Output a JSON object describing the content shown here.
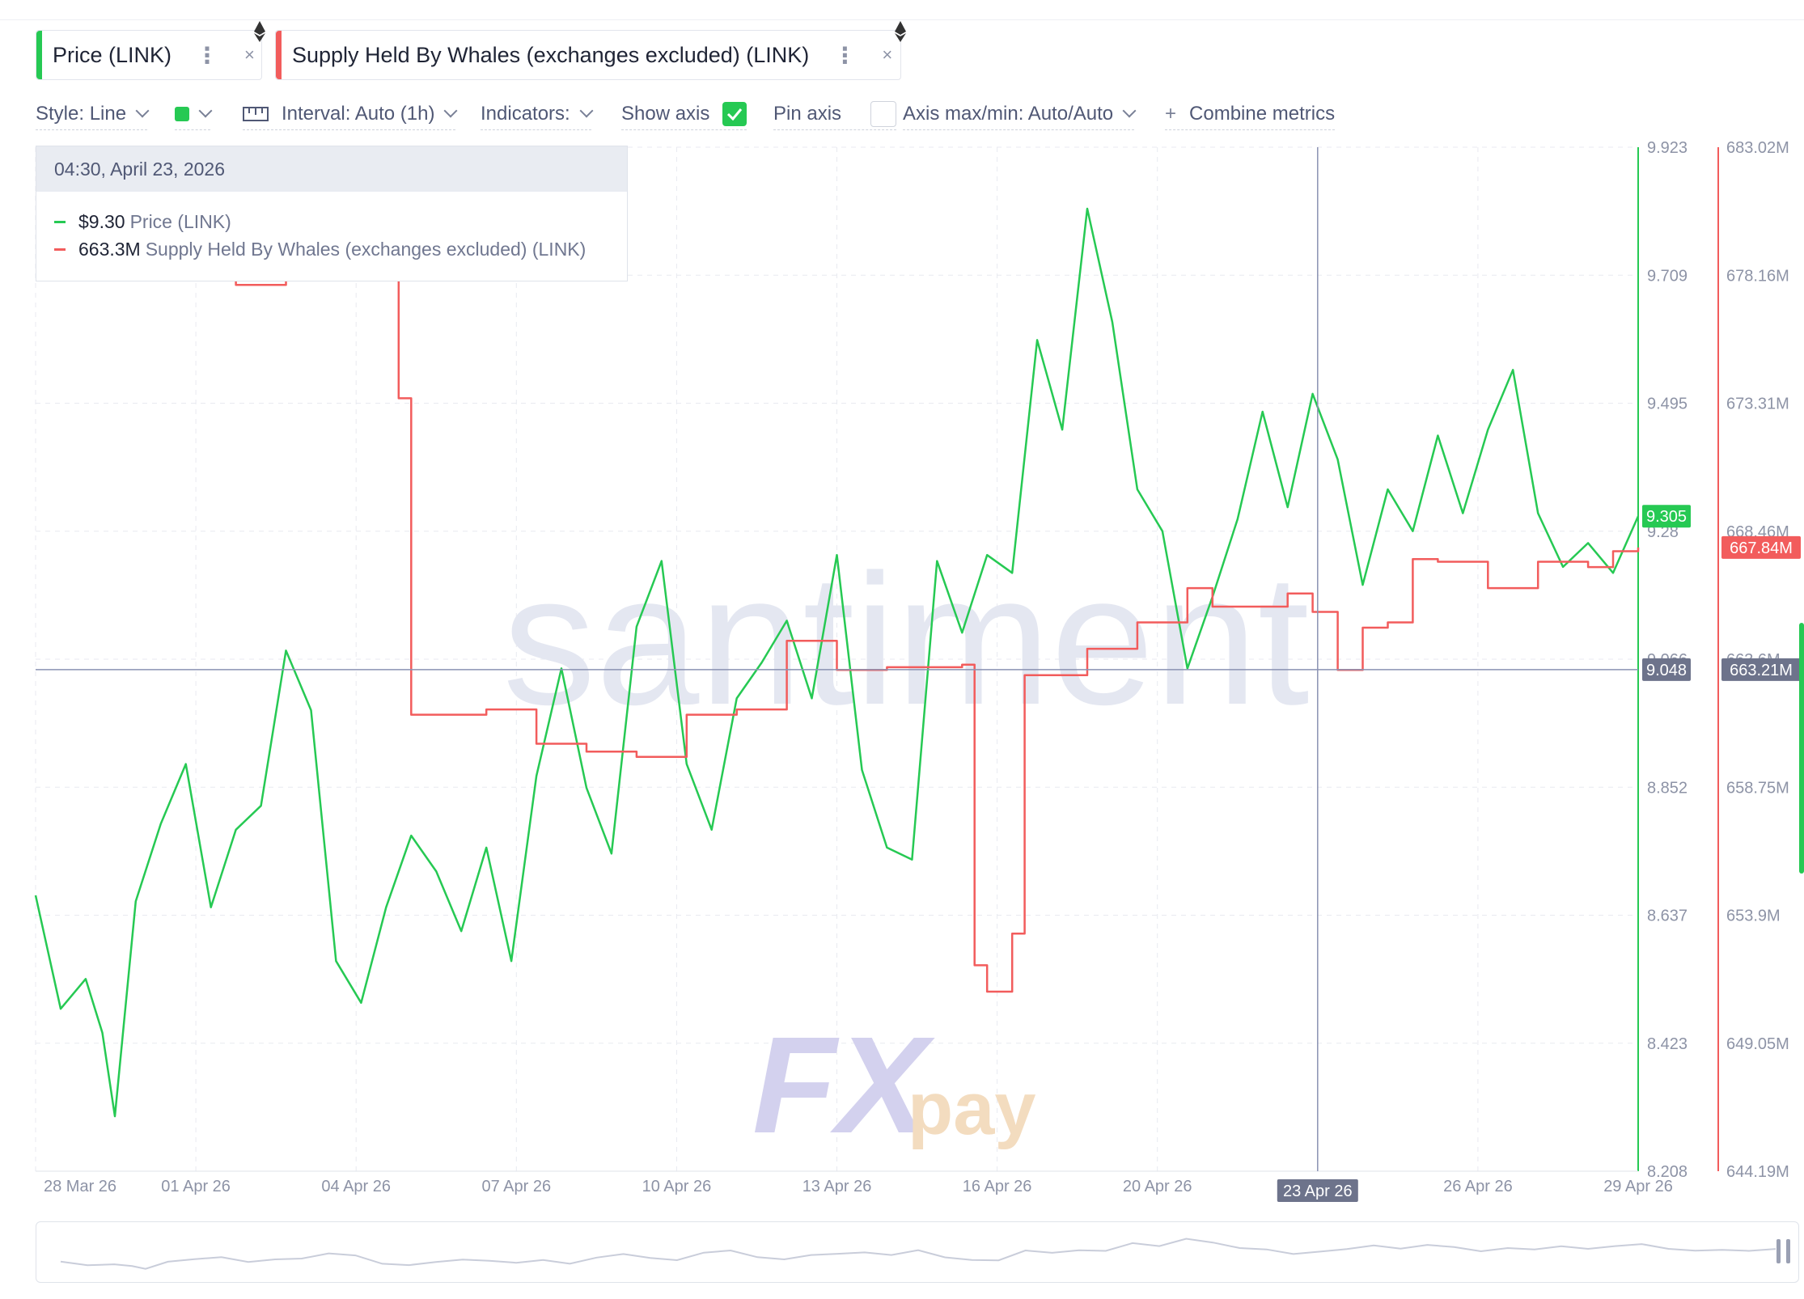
{
  "metric_tabs": [
    {
      "label": "Price (LINK)",
      "color": "#26c953",
      "menu_icon": "vertical-dots-icon",
      "close_icon": "close-icon",
      "close_label": "×"
    },
    {
      "label": "Supply Held By Whales (exchanges excluded) (LINK)",
      "color": "#f25c5c",
      "menu_icon": "vertical-dots-icon",
      "close_icon": "close-icon",
      "close_label": "×",
      "asset_icon": "ethereum-icon"
    }
  ],
  "toolbar": {
    "style": "Style: Line",
    "interval": "Interval: Auto (1h)",
    "indicators": "Indicators:",
    "show_axis": "Show axis",
    "show_axis_checked": true,
    "pin_axis": "Pin axis",
    "pin_axis_checked": false,
    "axis_maxmin": "Axis max/min: Auto/Auto",
    "combine": "Combine metrics",
    "plus": "+",
    "color_swatch": "#26c953"
  },
  "tooltip": {
    "date": "04:30, April 23, 2026",
    "rows": [
      {
        "value": "$9.30",
        "name": "Price (LINK)",
        "color": "#26c953"
      },
      {
        "value": "663.3M",
        "name": "Supply Held By Whales (exchanges excluded) (LINK)",
        "color": "#f25c5c"
      }
    ]
  },
  "watermarks": {
    "brand": "santiment",
    "logo_main": "FX",
    "logo_sub": "pay"
  },
  "chart_data": {
    "type": "line",
    "x_range": [
      "2026-03-28",
      "2026-04-29"
    ],
    "x_tick_labels": [
      "28 Mar 26",
      "01 Apr 26",
      "04 Apr 26",
      "07 Apr 26",
      "10 Apr 26",
      "13 Apr 26",
      "16 Apr 26",
      "20 Apr 26",
      "23 Apr 26",
      "26 Apr 26",
      "29 Apr 26"
    ],
    "y_left_ticks": [
      "9.923",
      "9.709",
      "9.495",
      "9.28",
      "9.066",
      "8.852",
      "8.637",
      "8.423",
      "8.208"
    ],
    "y_right_ticks": [
      "683.02M",
      "678.16M",
      "673.31M",
      "668.46M",
      "663.6M",
      "658.75M",
      "653.9M",
      "649.05M",
      "644.19M"
    ],
    "ylim_price": [
      8.208,
      9.923
    ],
    "ylim_supply": [
      644.19,
      683.02
    ],
    "crosshair": {
      "x_label": "23 Apr 26",
      "price_label": "9.048",
      "supply_label": "663.21M"
    },
    "last_value_labels": {
      "price": "9.305",
      "supply": "667.84M"
    },
    "grid": true,
    "series": [
      {
        "name": "Price (LINK)",
        "color": "#26c953",
        "axis": "left",
        "points": [
          [
            "2026-03-28",
            8.67
          ],
          [
            "2026-03-28T12",
            8.48
          ],
          [
            "2026-03-29",
            8.53
          ],
          [
            "2026-03-29T08",
            8.44
          ],
          [
            "2026-03-29T14",
            8.3
          ],
          [
            "2026-03-30",
            8.66
          ],
          [
            "2026-03-30T12",
            8.79
          ],
          [
            "2026-03-31",
            8.89
          ],
          [
            "2026-03-31T12",
            8.65
          ],
          [
            "2026-04-01",
            8.78
          ],
          [
            "2026-04-01T12",
            8.82
          ],
          [
            "2026-04-02",
            9.08
          ],
          [
            "2026-04-02T12",
            8.98
          ],
          [
            "2026-04-03",
            8.56
          ],
          [
            "2026-04-03T12",
            8.49
          ],
          [
            "2026-04-04",
            8.65
          ],
          [
            "2026-04-04T12",
            8.77
          ],
          [
            "2026-04-05",
            8.71
          ],
          [
            "2026-04-05T12",
            8.61
          ],
          [
            "2026-04-06",
            8.75
          ],
          [
            "2026-04-06T12",
            8.56
          ],
          [
            "2026-04-07",
            8.87
          ],
          [
            "2026-04-07T12",
            9.05
          ],
          [
            "2026-04-08",
            8.85
          ],
          [
            "2026-04-08T12",
            8.74
          ],
          [
            "2026-04-09",
            9.12
          ],
          [
            "2026-04-09T12",
            9.23
          ],
          [
            "2026-04-10",
            8.89
          ],
          [
            "2026-04-10T12",
            8.78
          ],
          [
            "2026-04-11",
            9.0
          ],
          [
            "2026-04-11T12",
            9.06
          ],
          [
            "2026-04-12",
            9.13
          ],
          [
            "2026-04-12T12",
            9.0
          ],
          [
            "2026-04-13",
            9.24
          ],
          [
            "2026-04-13T12",
            8.88
          ],
          [
            "2026-04-14",
            8.75
          ],
          [
            "2026-04-14T12",
            8.73
          ],
          [
            "2026-04-15",
            9.23
          ],
          [
            "2026-04-15T12",
            9.11
          ],
          [
            "2026-04-16",
            9.24
          ],
          [
            "2026-04-16T12",
            9.21
          ],
          [
            "2026-04-17",
            9.6
          ],
          [
            "2026-04-17T12",
            9.45
          ],
          [
            "2026-04-18",
            9.82
          ],
          [
            "2026-04-18T12",
            9.63
          ],
          [
            "2026-04-19",
            9.35
          ],
          [
            "2026-04-19T12",
            9.28
          ],
          [
            "2026-04-20",
            9.05
          ],
          [
            "2026-04-20T12",
            9.17
          ],
          [
            "2026-04-21",
            9.3
          ],
          [
            "2026-04-21T12",
            9.48
          ],
          [
            "2026-04-22",
            9.32
          ],
          [
            "2026-04-22T12",
            9.51
          ],
          [
            "2026-04-23",
            9.4
          ],
          [
            "2026-04-23T12",
            9.19
          ],
          [
            "2026-04-24",
            9.35
          ],
          [
            "2026-04-24T12",
            9.28
          ],
          [
            "2026-04-25",
            9.44
          ],
          [
            "2026-04-25T12",
            9.31
          ],
          [
            "2026-04-26",
            9.45
          ],
          [
            "2026-04-26T12",
            9.55
          ],
          [
            "2026-04-27",
            9.31
          ],
          [
            "2026-04-27T12",
            9.22
          ],
          [
            "2026-04-28",
            9.26
          ],
          [
            "2026-04-28T12",
            9.21
          ],
          [
            "2026-04-29",
            9.305
          ]
        ]
      },
      {
        "name": "Supply Held By Whales (exchanges excluded) (LINK)",
        "color": "#f25c5c",
        "axis": "right",
        "points": [
          [
            "2026-03-28",
            680.0
          ],
          [
            "2026-03-30",
            678.0
          ],
          [
            "2026-04-01",
            677.8
          ],
          [
            "2026-04-02",
            678.3
          ],
          [
            "2026-04-03",
            678.6
          ],
          [
            "2026-04-04",
            679.5
          ],
          [
            "2026-04-04T06",
            673.5
          ],
          [
            "2026-04-04T12",
            661.5
          ],
          [
            "2026-04-05",
            661.5
          ],
          [
            "2026-04-06",
            661.7
          ],
          [
            "2026-04-07",
            660.4
          ],
          [
            "2026-04-08",
            660.1
          ],
          [
            "2026-04-09",
            659.9
          ],
          [
            "2026-04-10",
            661.5
          ],
          [
            "2026-04-11",
            661.7
          ],
          [
            "2026-04-12",
            664.3
          ],
          [
            "2026-04-13",
            663.2
          ],
          [
            "2026-04-14",
            663.3
          ],
          [
            "2026-04-15",
            663.3
          ],
          [
            "2026-04-15T12",
            663.4
          ],
          [
            "2026-04-15T18",
            652.0
          ],
          [
            "2026-04-16",
            651.0
          ],
          [
            "2026-04-16T12",
            653.2
          ],
          [
            "2026-04-16T18",
            663.0
          ],
          [
            "2026-04-17",
            663.0
          ],
          [
            "2026-04-18",
            664.0
          ],
          [
            "2026-04-19",
            665.0
          ],
          [
            "2026-04-20",
            666.3
          ],
          [
            "2026-04-20T12",
            665.6
          ],
          [
            "2026-04-21",
            665.6
          ],
          [
            "2026-04-22",
            666.1
          ],
          [
            "2026-04-22T12",
            665.4
          ],
          [
            "2026-04-23",
            663.2
          ],
          [
            "2026-04-23T12",
            664.8
          ],
          [
            "2026-04-24",
            665.0
          ],
          [
            "2026-04-24T12",
            667.4
          ],
          [
            "2026-04-25",
            667.3
          ],
          [
            "2026-04-26",
            666.3
          ],
          [
            "2026-04-27",
            667.3
          ],
          [
            "2026-04-28",
            667.1
          ],
          [
            "2026-04-28T12",
            667.7
          ],
          [
            "2026-04-29",
            667.84
          ]
        ]
      }
    ]
  }
}
